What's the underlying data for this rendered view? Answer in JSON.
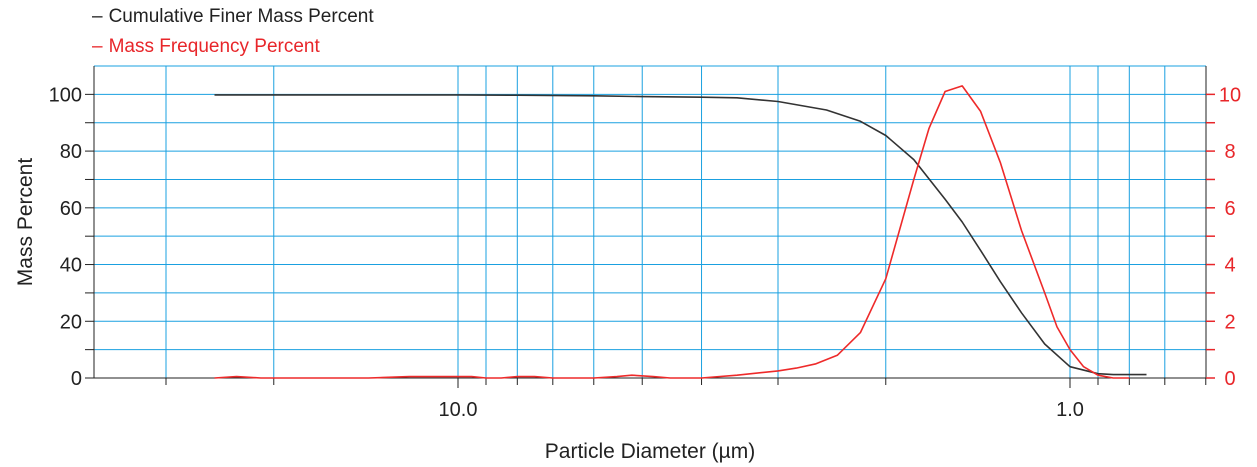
{
  "legend": {
    "cumulative_label": "Cumulative Finer Mass Percent",
    "frequency_label": "Mass Frequency Percent"
  },
  "colors": {
    "cumulative": "#333333",
    "frequency": "#ee2a2a",
    "grid": "#1aa0e0",
    "axis": "#222222",
    "right_axis": "#e8262a"
  },
  "chart_data": {
    "type": "line",
    "title": "",
    "xlabel": "Particle Diameter (µm)",
    "ylabel": "Mass Percent",
    "y2label": "",
    "x_scale": "log",
    "x_reversed": true,
    "xlim": [
      28,
      0.6
    ],
    "ylim": [
      0,
      110
    ],
    "y2lim": [
      0,
      11
    ],
    "x_tick_labels": [
      {
        "value": 10.0,
        "label": "10.0"
      },
      {
        "value": 1.0,
        "label": "1.0"
      }
    ],
    "y_ticks": [
      0,
      20,
      40,
      60,
      80,
      100
    ],
    "y2_ticks": [
      0,
      2,
      4,
      6,
      8,
      10
    ],
    "grid": true,
    "legend_position": "top-left",
    "series": [
      {
        "name": "Cumulative Finer Mass Percent",
        "axis": "left",
        "x": [
          25,
          20,
          15,
          12,
          10,
          8,
          6,
          5,
          4,
          3.5,
          3,
          2.5,
          2.2,
          2.0,
          1.8,
          1.6,
          1.5,
          1.4,
          1.3,
          1.2,
          1.1,
          1.0,
          0.9,
          0.85,
          0.8,
          0.75
        ],
        "y": [
          99.8,
          99.8,
          99.8,
          99.8,
          99.8,
          99.7,
          99.5,
          99.2,
          99.0,
          98.8,
          97.5,
          94.5,
          90.5,
          85.5,
          77,
          63,
          55,
          45,
          34,
          23,
          12,
          4,
          1.5,
          1.2,
          1.2,
          1.2
        ]
      },
      {
        "name": "Mass Frequency Percent",
        "axis": "right",
        "x": [
          25,
          23,
          21,
          18,
          16,
          14,
          12,
          11.5,
          11,
          10,
          9.5,
          9,
          8.5,
          8,
          7.5,
          7,
          6.5,
          6,
          5.5,
          5.2,
          4.8,
          4.5,
          4.2,
          4.0,
          3.5,
          3.0,
          2.8,
          2.6,
          2.4,
          2.2,
          2.0,
          1.8,
          1.7,
          1.6,
          1.5,
          1.4,
          1.3,
          1.2,
          1.1,
          1.05,
          1.0,
          0.95,
          0.9,
          0.85,
          0.8
        ],
        "y": [
          0,
          0.05,
          0,
          0,
          0,
          0,
          0.05,
          0.05,
          0.05,
          0.05,
          0.05,
          0,
          0,
          0.05,
          0.05,
          0,
          0,
          0,
          0.05,
          0.1,
          0.05,
          0,
          0,
          0,
          0.1,
          0.25,
          0.35,
          0.5,
          0.8,
          1.6,
          3.5,
          7.0,
          8.8,
          10.1,
          10.3,
          9.4,
          7.6,
          5.2,
          3.0,
          1.8,
          1.0,
          0.4,
          0.1,
          0,
          0
        ]
      }
    ]
  }
}
